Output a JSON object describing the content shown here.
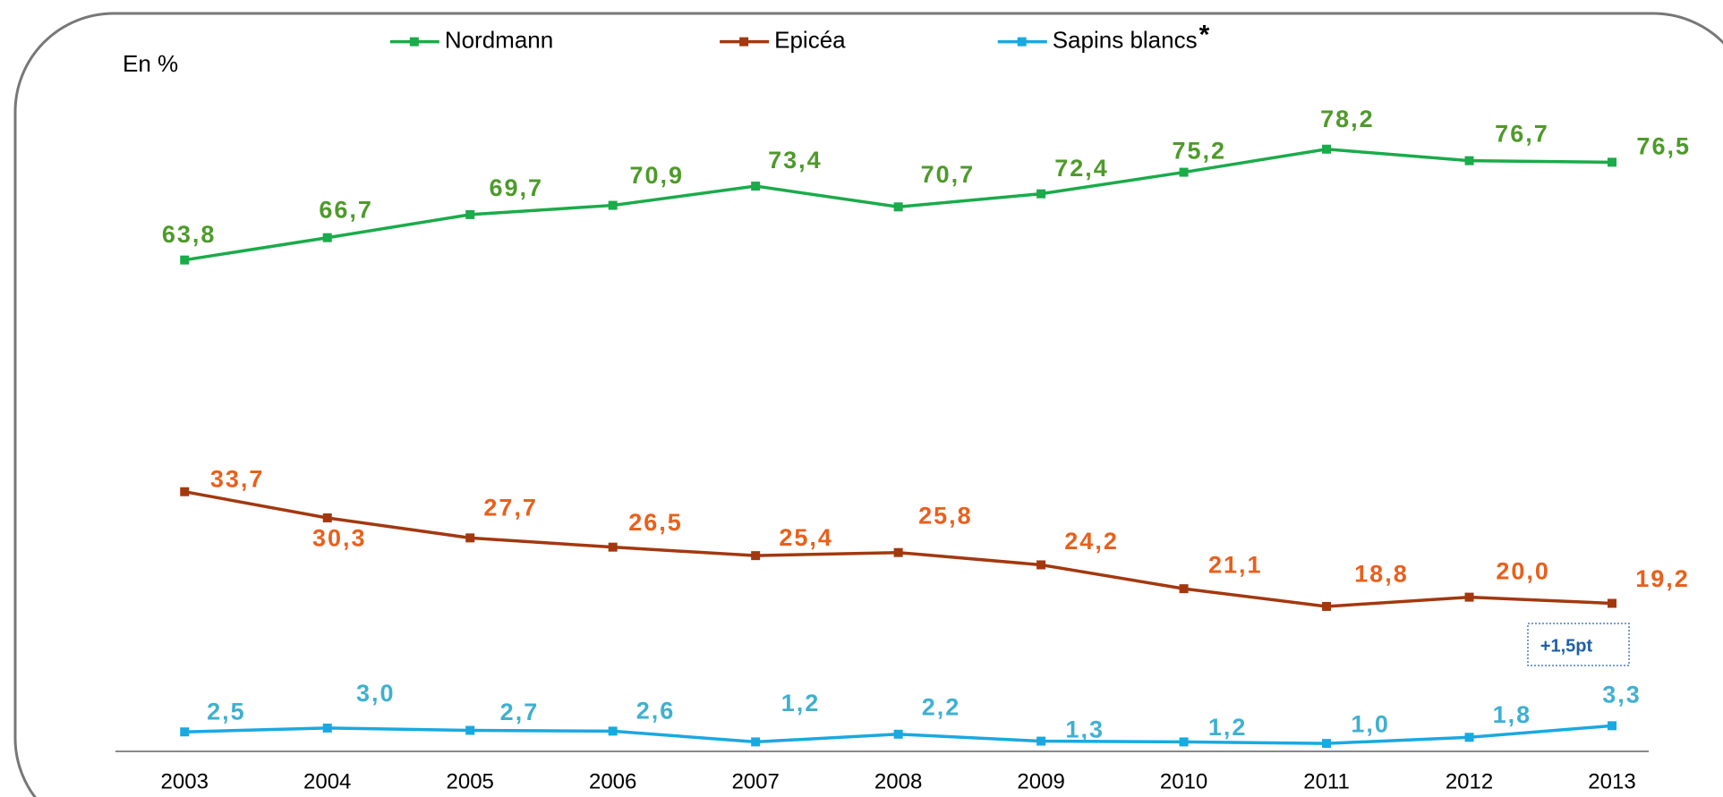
{
  "chart_data": {
    "type": "line",
    "y_label": "En %",
    "categories": [
      "2003",
      "2004",
      "2005",
      "2006",
      "2007",
      "2008",
      "2009",
      "2010",
      "2011",
      "2012",
      "2013"
    ],
    "ylim": [
      0,
      80
    ],
    "series": [
      {
        "name": "Nordmann",
        "color": "#1aab4a",
        "label_color": "#4e9a2a",
        "values": [
          63.8,
          66.7,
          69.7,
          70.9,
          73.4,
          70.7,
          72.4,
          75.2,
          78.2,
          76.7,
          76.5
        ],
        "value_labels": [
          "63,8",
          "66,7",
          "69,7",
          "70,9",
          "73,4",
          "70,7",
          "72,4",
          "75,2",
          "78,2",
          "76,7",
          "76,5"
        ]
      },
      {
        "name": "Epicéa",
        "color": "#a3380f",
        "label_color": "#e8601c",
        "values": [
          33.7,
          30.3,
          27.7,
          26.5,
          25.4,
          25.8,
          24.2,
          21.1,
          18.8,
          20.0,
          19.2
        ],
        "value_labels": [
          "33,7",
          "30,3",
          "27,7",
          "26,5",
          "25,4",
          "25,8",
          "24,2",
          "21,1",
          "18,8",
          "20,0",
          "19,2"
        ]
      },
      {
        "name": "Sapins blancs",
        "color": "#19a9e1",
        "label_color": "#3fb0d0",
        "values": [
          2.5,
          3.0,
          2.7,
          2.6,
          1.2,
          2.2,
          1.3,
          1.2,
          1.0,
          1.8,
          3.3
        ],
        "value_labels": [
          "2,5",
          "3,0",
          "2,7",
          "2,6",
          "1,2",
          "2,2",
          "1,3",
          "1,2",
          "1,0",
          "1,8",
          "3,3"
        ]
      }
    ],
    "legend_note": "*",
    "annotation": "+1,5pt",
    "legend": "top"
  }
}
